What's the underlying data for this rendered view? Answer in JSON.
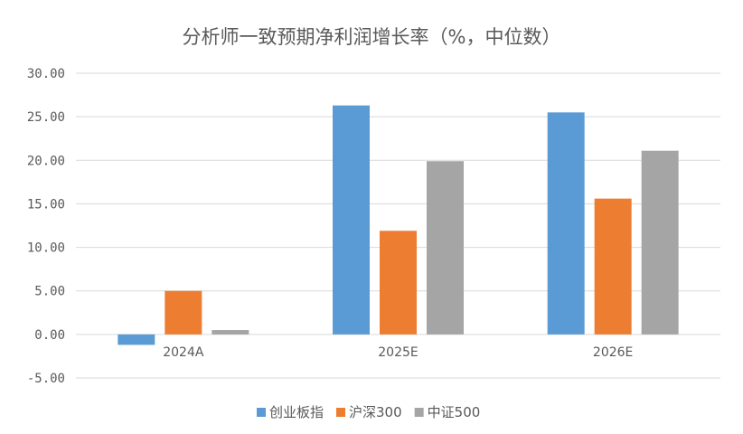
{
  "chart_data": {
    "type": "bar",
    "title": "分析师一致预期净利润增长率（%，中位数）",
    "categories": [
      "2024A",
      "2025E",
      "2026E"
    ],
    "series": [
      {
        "name": "创业板指",
        "color": "#5b9bd5",
        "values": [
          -1.2,
          26.3,
          25.5
        ]
      },
      {
        "name": "沪深300",
        "color": "#ed7d31",
        "values": [
          5.0,
          11.9,
          15.6
        ]
      },
      {
        "name": "中证500",
        "color": "#a5a5a5",
        "values": [
          0.5,
          19.9,
          21.1
        ]
      }
    ],
    "ylim": [
      -5,
      30
    ],
    "yticks": [
      "-5.00",
      "0.00",
      "5.00",
      "10.00",
      "15.00",
      "20.00",
      "25.00",
      "30.00"
    ],
    "grid": true,
    "legend_position": "bottom",
    "xlabel": "",
    "ylabel": ""
  }
}
